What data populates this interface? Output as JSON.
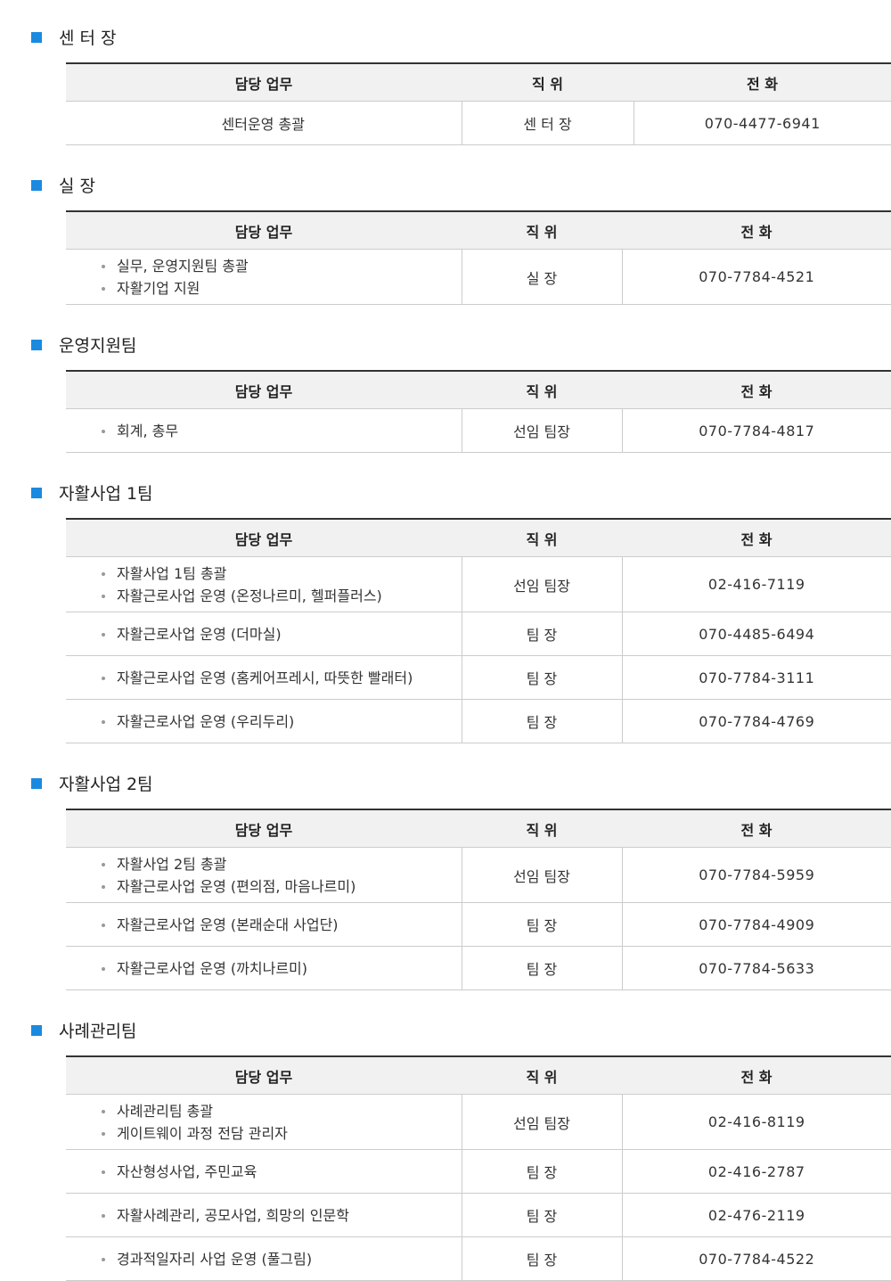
{
  "accent_color": "#1a8ae0",
  "headers": {
    "duty": "담당 업무",
    "position": "직 위",
    "phone": "전 화"
  },
  "sections": [
    {
      "title": "센 터 장",
      "rows": [
        {
          "duties": [
            "센터운영 총괄"
          ],
          "position": "센 터 장",
          "phone": "070-4477-6941"
        }
      ]
    },
    {
      "title": "실 장",
      "rows": [
        {
          "duties": [
            "실무, 운영지원팀 총괄",
            "자활기업 지원"
          ],
          "position": "실 장",
          "phone": "070-7784-4521"
        }
      ]
    },
    {
      "title": "운영지원팀",
      "rows": [
        {
          "duties": [
            "회계, 총무"
          ],
          "position": "선임 팀장",
          "phone": "070-7784-4817"
        }
      ]
    },
    {
      "title": "자활사업 1팀",
      "rows": [
        {
          "duties": [
            "자활사업 1팀 총괄",
            "자활근로사업 운영 (온정나르미, 헬퍼플러스)"
          ],
          "position": "선임 팀장",
          "phone": "02-416-7119"
        },
        {
          "duties": [
            "자활근로사업 운영 (더마실)"
          ],
          "position": "팀 장",
          "phone": "070-4485-6494"
        },
        {
          "duties": [
            "자활근로사업 운영 (홈케어프레시, 따뜻한 빨래터)"
          ],
          "position": "팀 장",
          "phone": "070-7784-3111"
        },
        {
          "duties": [
            "자활근로사업 운영 (우리두리)"
          ],
          "position": "팀 장",
          "phone": "070-7784-4769"
        }
      ]
    },
    {
      "title": "자활사업 2팀",
      "rows": [
        {
          "duties": [
            "자활사업 2팀 총괄",
            "자활근로사업 운영 (편의점, 마음나르미)"
          ],
          "position": "선임 팀장",
          "phone": "070-7784-5959"
        },
        {
          "duties": [
            "자활근로사업 운영 (본래순대 사업단)"
          ],
          "position": "팀 장",
          "phone": "070-7784-4909"
        },
        {
          "duties": [
            "자활근로사업 운영 (까치나르미)"
          ],
          "position": "팀 장",
          "phone": "070-7784-5633"
        }
      ]
    },
    {
      "title": "사례관리팀",
      "rows": [
        {
          "duties": [
            "사례관리팀 총괄",
            "게이트웨이 과정 전담 관리자"
          ],
          "position": "선임 팀장",
          "phone": "02-416-8119"
        },
        {
          "duties": [
            "자산형성사업, 주민교육"
          ],
          "position": "팀 장",
          "phone": "02-416-2787"
        },
        {
          "duties": [
            "자활사례관리, 공모사업, 희망의 인문학"
          ],
          "position": "팀 장",
          "phone": "02-476-2119"
        },
        {
          "duties": [
            "경과적일자리 사업 운영 (풀그림)"
          ],
          "position": "팀 장",
          "phone": "070-7784-4522"
        }
      ]
    }
  ]
}
